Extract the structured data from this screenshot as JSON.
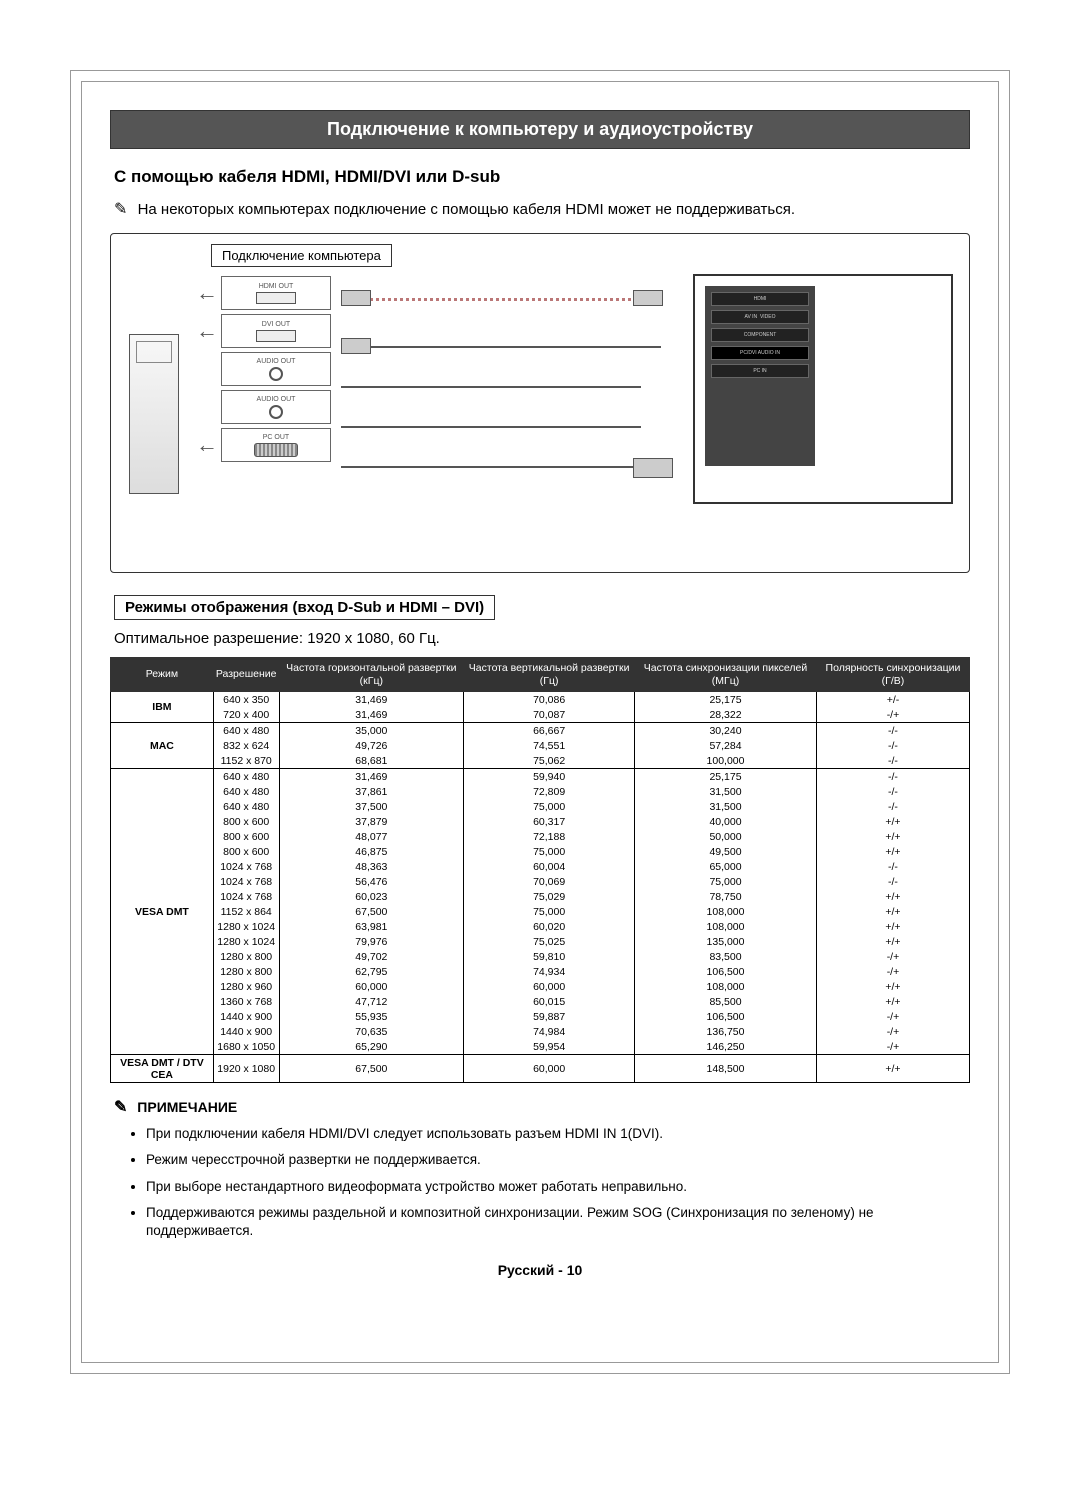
{
  "title": "Подключение к компьютеру и аудиоустройству",
  "subtitle": "С помощью кабеля HDMI, HDMI/DVI или D-sub",
  "top_note": "На некоторых компьютерах подключение с помощью кабеля HDMI может не поддерживаться.",
  "diagram": {
    "label": "Подключение компьютера",
    "ports": [
      "HDMI OUT",
      "DVI OUT",
      "AUDIO OUT",
      "AUDIO OUT",
      "PC OUT"
    ]
  },
  "modes_label": "Режимы отображения (вход D-Sub и HDMI – DVI)",
  "optimal": "Оптимальное разрешение: 1920 x 1080, 60 Гц.",
  "table": {
    "headers": [
      "Режим",
      "Разрешение",
      "Частота горизонтальной развертки (кГц)",
      "Частота вертикальной развертки (Гц)",
      "Частота синхронизации пикселей (МГц)",
      "Полярность синхронизации (Г/В)"
    ],
    "groups": [
      {
        "mode": "IBM",
        "rows": [
          [
            "640 x 350",
            "31,469",
            "70,086",
            "25,175",
            "+/-"
          ],
          [
            "720 x 400",
            "31,469",
            "70,087",
            "28,322",
            "-/+"
          ]
        ]
      },
      {
        "mode": "MAC",
        "rows": [
          [
            "640 x 480",
            "35,000",
            "66,667",
            "30,240",
            "-/-"
          ],
          [
            "832 x 624",
            "49,726",
            "74,551",
            "57,284",
            "-/-"
          ],
          [
            "1152 x 870",
            "68,681",
            "75,062",
            "100,000",
            "-/-"
          ]
        ]
      },
      {
        "mode": "VESA DMT",
        "rows": [
          [
            "640 x 480",
            "31,469",
            "59,940",
            "25,175",
            "-/-"
          ],
          [
            "640 x 480",
            "37,861",
            "72,809",
            "31,500",
            "-/-"
          ],
          [
            "640 x 480",
            "37,500",
            "75,000",
            "31,500",
            "-/-"
          ],
          [
            "800 x 600",
            "37,879",
            "60,317",
            "40,000",
            "+/+"
          ],
          [
            "800 x 600",
            "48,077",
            "72,188",
            "50,000",
            "+/+"
          ],
          [
            "800 x 600",
            "46,875",
            "75,000",
            "49,500",
            "+/+"
          ],
          [
            "1024 x 768",
            "48,363",
            "60,004",
            "65,000",
            "-/-"
          ],
          [
            "1024 x 768",
            "56,476",
            "70,069",
            "75,000",
            "-/-"
          ],
          [
            "1024 x 768",
            "60,023",
            "75,029",
            "78,750",
            "+/+"
          ],
          [
            "1152 x 864",
            "67,500",
            "75,000",
            "108,000",
            "+/+"
          ],
          [
            "1280 x 1024",
            "63,981",
            "60,020",
            "108,000",
            "+/+"
          ],
          [
            "1280 x 1024",
            "79,976",
            "75,025",
            "135,000",
            "+/+"
          ],
          [
            "1280 x 800",
            "49,702",
            "59,810",
            "83,500",
            "-/+"
          ],
          [
            "1280 x 800",
            "62,795",
            "74,934",
            "106,500",
            "-/+"
          ],
          [
            "1280 x 960",
            "60,000",
            "60,000",
            "108,000",
            "+/+"
          ],
          [
            "1360 x 768",
            "47,712",
            "60,015",
            "85,500",
            "+/+"
          ],
          [
            "1440 x 900",
            "55,935",
            "59,887",
            "106,500",
            "-/+"
          ],
          [
            "1440 x 900",
            "70,635",
            "74,984",
            "136,750",
            "-/+"
          ],
          [
            "1680 x 1050",
            "65,290",
            "59,954",
            "146,250",
            "-/+"
          ]
        ]
      },
      {
        "mode": "VESA DMT / DTV CEA",
        "rows": [
          [
            "1920 x 1080",
            "67,500",
            "60,000",
            "148,500",
            "+/+"
          ]
        ]
      }
    ]
  },
  "notes_head": "ПРИМЕЧАНИЕ",
  "notes": [
    "При подключении кабеля HDMI/DVI следует использовать разъем HDMI IN 1(DVI).",
    "Режим чересстрочной развертки не поддерживается.",
    "При выборе нестандартного видеоформата устройство может работать неправильно.",
    "Поддерживаются режимы раздельной и композитной синхронизации. Режим SOG (Синхронизация по зеленому) не поддерживается."
  ],
  "footer": "Русский - 10"
}
